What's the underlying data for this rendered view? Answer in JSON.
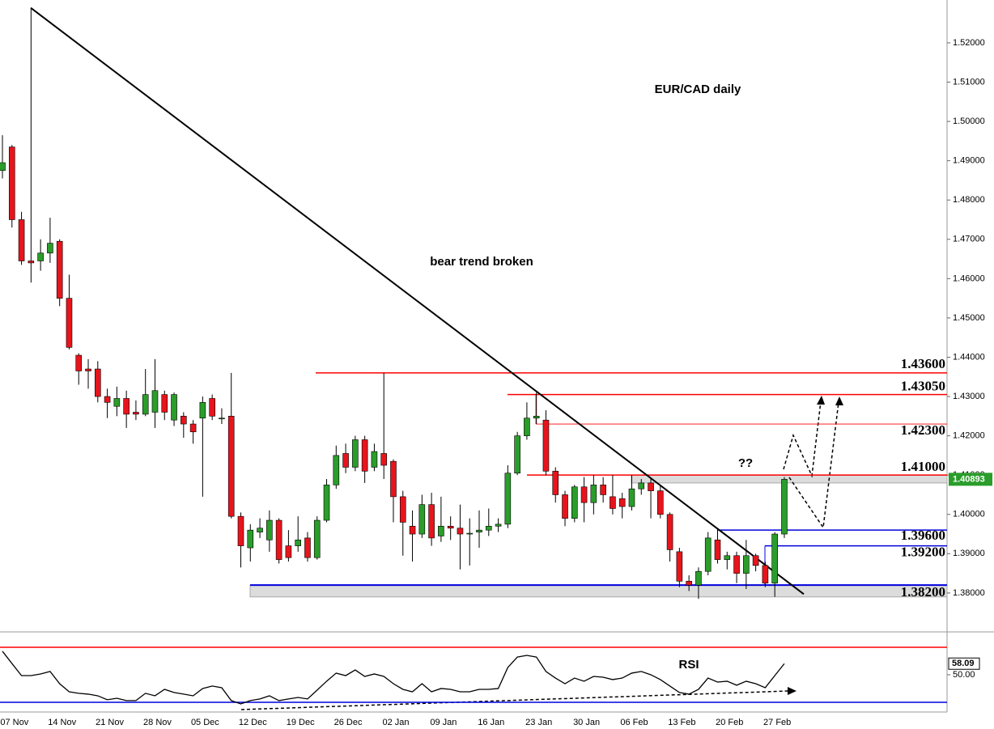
{
  "chart_data": {
    "type": "candlestick",
    "title": "EUR/CAD daily",
    "annotations": [
      "bear trend broken",
      "??"
    ],
    "categories": [
      null,
      "07 Nov",
      null,
      null,
      null,
      null,
      "14 Nov",
      null,
      null,
      null,
      null,
      "21 Nov",
      null,
      null,
      null,
      null,
      "28 Nov",
      null,
      null,
      null,
      null,
      "05 Dec",
      null,
      null,
      null,
      null,
      "12 Dec",
      null,
      null,
      null,
      null,
      "19 Dec",
      null,
      null,
      null,
      null,
      "26 Dec",
      null,
      null,
      null,
      null,
      "02 Jan",
      null,
      null,
      null,
      null,
      "09 Jan",
      null,
      null,
      null,
      null,
      "16 Jan",
      null,
      null,
      null,
      null,
      "23 Jan",
      null,
      null,
      null,
      null,
      "30 Jan",
      null,
      null,
      null,
      null,
      "06 Feb",
      null,
      null,
      null,
      null,
      "13 Feb",
      null,
      null,
      null,
      null,
      "20 Feb",
      null,
      null,
      null,
      null,
      "27 Feb",
      null
    ],
    "ohlc": [
      [
        1.4875,
        1.4965,
        1.4855,
        1.4895
      ],
      [
        1.4935,
        1.494,
        1.473,
        1.475
      ],
      [
        1.475,
        1.477,
        1.4635,
        1.4645
      ],
      [
        1.4645,
        1.5289,
        1.459,
        1.464
      ],
      [
        1.4645,
        1.47,
        1.462,
        1.4665
      ],
      [
        1.4665,
        1.4755,
        1.464,
        1.469
      ],
      [
        1.4695,
        1.47,
        1.453,
        1.455
      ],
      [
        1.455,
        1.461,
        1.442,
        1.4425
      ],
      [
        1.4405,
        1.441,
        1.433,
        1.4365
      ],
      [
        1.437,
        1.4395,
        1.432,
        1.4365
      ],
      [
        1.437,
        1.439,
        1.4285,
        1.43
      ],
      [
        1.43,
        1.432,
        1.4245,
        1.4285
      ],
      [
        1.4275,
        1.4325,
        1.425,
        1.4295
      ],
      [
        1.4295,
        1.4315,
        1.422,
        1.4255
      ],
      [
        1.426,
        1.429,
        1.424,
        1.4255
      ],
      [
        1.4255,
        1.437,
        1.425,
        1.4305
      ],
      [
        1.426,
        1.4395,
        1.422,
        1.4315
      ],
      [
        1.4305,
        1.4315,
        1.424,
        1.426
      ],
      [
        1.424,
        1.431,
        1.4225,
        1.4305
      ],
      [
        1.425,
        1.426,
        1.4195,
        1.423
      ],
      [
        1.423,
        1.424,
        1.418,
        1.421
      ],
      [
        1.4245,
        1.43,
        1.4045,
        1.4285
      ],
      [
        1.4295,
        1.4305,
        1.424,
        1.425
      ],
      [
        1.4245,
        1.427,
        1.423,
        1.4245
      ],
      [
        1.425,
        1.436,
        1.399,
        1.3995
      ],
      [
        1.3995,
        1.4005,
        1.3865,
        1.392
      ],
      [
        1.3915,
        1.3975,
        1.388,
        1.396
      ],
      [
        1.3955,
        1.399,
        1.394,
        1.3965
      ],
      [
        1.3935,
        1.401,
        1.3905,
        1.3985
      ],
      [
        1.3985,
        1.399,
        1.3875,
        1.3885
      ],
      [
        1.392,
        1.396,
        1.388,
        1.389
      ],
      [
        1.392,
        1.3995,
        1.3905,
        1.3935
      ],
      [
        1.394,
        1.3955,
        1.388,
        1.389
      ],
      [
        1.389,
        1.3995,
        1.3885,
        1.3985
      ],
      [
        1.3985,
        1.409,
        1.398,
        1.4075
      ],
      [
        1.4075,
        1.4175,
        1.4065,
        1.415
      ],
      [
        1.4155,
        1.418,
        1.4105,
        1.412
      ],
      [
        1.412,
        1.42,
        1.411,
        1.419
      ],
      [
        1.419,
        1.42,
        1.408,
        1.411
      ],
      [
        1.412,
        1.418,
        1.411,
        1.416
      ],
      [
        1.4155,
        1.436,
        1.409,
        1.4125
      ],
      [
        1.4135,
        1.414,
        1.398,
        1.4045
      ],
      [
        1.4045,
        1.406,
        1.3895,
        1.398
      ],
      [
        1.397,
        1.401,
        1.388,
        1.395
      ],
      [
        1.395,
        1.405,
        1.394,
        1.4025
      ],
      [
        1.4025,
        1.4055,
        1.392,
        1.394
      ],
      [
        1.3945,
        1.4045,
        1.393,
        1.397
      ],
      [
        1.397,
        1.3995,
        1.3935,
        1.3965
      ],
      [
        1.3965,
        1.4025,
        1.386,
        1.395
      ],
      [
        1.395,
        1.399,
        1.387,
        1.3952
      ],
      [
        1.3955,
        1.401,
        1.3915,
        1.396
      ],
      [
        1.396,
        1.4015,
        1.3945,
        1.397
      ],
      [
        1.397,
        1.399,
        1.3955,
        1.3975
      ],
      [
        1.3975,
        1.4125,
        1.3965,
        1.4105
      ],
      [
        1.4105,
        1.421,
        1.41,
        1.42
      ],
      [
        1.42,
        1.4285,
        1.419,
        1.4245
      ],
      [
        1.4245,
        1.431,
        1.423,
        1.425
      ],
      [
        1.424,
        1.4265,
        1.41,
        1.411
      ],
      [
        1.411,
        1.412,
        1.403,
        1.405
      ],
      [
        1.405,
        1.406,
        1.397,
        1.399
      ],
      [
        1.399,
        1.4075,
        1.398,
        1.407
      ],
      [
        1.407,
        1.4095,
        1.398,
        1.403
      ],
      [
        1.403,
        1.41,
        1.4,
        1.4075
      ],
      [
        1.4075,
        1.4095,
        1.403,
        1.405
      ],
      [
        1.4045,
        1.41,
        1.4,
        1.4015
      ],
      [
        1.404,
        1.4055,
        1.399,
        1.402
      ],
      [
        1.402,
        1.41,
        1.401,
        1.4065
      ],
      [
        1.4065,
        1.409,
        1.405,
        1.408
      ],
      [
        1.408,
        1.409,
        1.399,
        1.406
      ],
      [
        1.406,
        1.4075,
        1.399,
        1.4
      ],
      [
        1.4,
        1.4005,
        1.388,
        1.391
      ],
      [
        1.3905,
        1.3915,
        1.3815,
        1.383
      ],
      [
        1.383,
        1.3845,
        1.3805,
        1.382
      ],
      [
        1.382,
        1.3865,
        1.3785,
        1.3855
      ],
      [
        1.3855,
        1.3955,
        1.3845,
        1.394
      ],
      [
        1.3935,
        1.3965,
        1.3875,
        1.3885
      ],
      [
        1.3885,
        1.3905,
        1.386,
        1.3895
      ],
      [
        1.3895,
        1.3905,
        1.3825,
        1.385
      ],
      [
        1.385,
        1.3935,
        1.381,
        1.3895
      ],
      [
        1.3895,
        1.39,
        1.3855,
        1.387
      ],
      [
        1.387,
        1.388,
        1.3815,
        1.3825
      ],
      [
        1.3825,
        1.3955,
        1.379,
        1.395
      ],
      [
        1.395,
        1.4095,
        1.394,
        1.40893
      ]
    ],
    "up_color": "#2a9d2a",
    "down_color": "#e8141c",
    "ylim": [
      1.3703,
      1.5309
    ],
    "yticks": [
      {
        "value": 1.38,
        "label": "1.38000"
      },
      {
        "value": 1.39,
        "label": "1.39000"
      },
      {
        "value": 1.4,
        "label": "1.40000"
      },
      {
        "value": 1.41,
        "label": "1.41000"
      },
      {
        "value": 1.42,
        "label": "1.42000"
      },
      {
        "value": 1.43,
        "label": "1.43000"
      },
      {
        "value": 1.44,
        "label": "1.44000"
      },
      {
        "value": 1.45,
        "label": "1.45000"
      },
      {
        "value": 1.46,
        "label": "1.46000"
      },
      {
        "value": 1.47,
        "label": "1.47000"
      },
      {
        "value": 1.48,
        "label": "1.48000"
      },
      {
        "value": 1.49,
        "label": "1.49000"
      },
      {
        "value": 1.5,
        "label": "1.50000"
      },
      {
        "value": 1.51,
        "label": "1.51000"
      },
      {
        "value": 1.52,
        "label": "1.52000"
      }
    ],
    "levels": [
      {
        "value": 1.436,
        "label": "1.43600",
        "color": "#ff0000"
      },
      {
        "value": 1.4305,
        "label": "1.43050",
        "color": "#ff0000"
      },
      {
        "value": 1.423,
        "label": "1.42300",
        "color": "#ff0000"
      },
      {
        "value": 1.41,
        "label": "1.41000",
        "color": "#ff0000"
      },
      {
        "value": 1.396,
        "label": "1.39600",
        "color": "#0000dd"
      },
      {
        "value": 1.392,
        "label": "1.39200",
        "color": "#0000dd"
      },
      {
        "value": 1.382,
        "label": "1.38200",
        "color": "#0000dd"
      }
    ],
    "zones": [
      [
        1.408,
        1.41
      ],
      [
        1.379,
        1.382
      ]
    ],
    "trendline": [
      1.5289,
      1.3797
    ],
    "rsi": {
      "name": "RSI",
      "color": "#000000",
      "values": [
        67.1,
        58.2,
        49.4,
        49.4,
        50.6,
        52.4,
        43.5,
        37.6,
        36.5,
        35.9,
        34.7,
        31.8,
        32.9,
        31.2,
        31.2,
        36.5,
        34.7,
        39.4,
        37.1,
        35.9,
        34.7,
        40.0,
        41.8,
        40.6,
        31.2,
        28.8,
        31.2,
        32.4,
        34.7,
        31.2,
        32.4,
        33.5,
        32.4,
        38.8,
        45.3,
        51.2,
        49.4,
        53.5,
        48.8,
        50.6,
        48.8,
        43.5,
        39.4,
        37.6,
        43.5,
        37.6,
        40.0,
        39.4,
        37.6,
        37.6,
        39.4,
        39.4,
        40.0,
        55.3,
        62.9,
        64.1,
        62.9,
        52.4,
        47.6,
        43.5,
        47.6,
        45.3,
        48.8,
        48.2,
        46.5,
        47.6,
        51.2,
        52.4,
        50.0,
        46.5,
        41.8,
        37.1,
        35.9,
        39.4,
        47.6,
        44.7,
        45.3,
        42.4,
        45.3,
        43.5,
        40.6,
        49.4,
        58.09
      ],
      "levels": [
        70,
        30
      ],
      "level_colors": [
        "#ff0000",
        "#0000dd"
      ],
      "ylim": [
        22.9,
        80.6
      ],
      "yticks": [
        {
          "value": 50,
          "label": "50.00"
        }
      ]
    }
  }
}
